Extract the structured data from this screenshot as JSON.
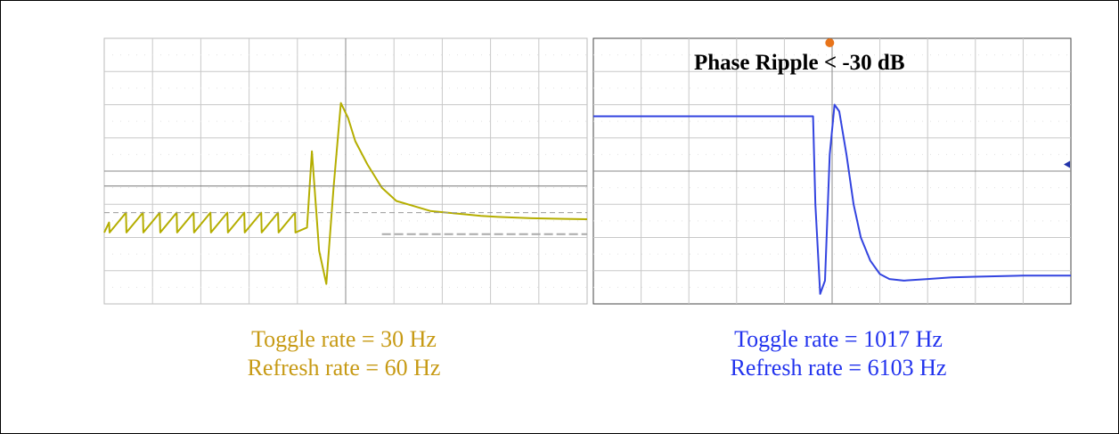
{
  "colors": {
    "left_trace": "#b5ae00",
    "left_text": "#c79a14",
    "right_trace": "#3344e0",
    "right_text": "#2233ee",
    "grid": "#c8c8c8"
  },
  "chart_data": [
    {
      "type": "line",
      "title": "",
      "xlabel": "",
      "ylabel": "",
      "grid": true,
      "captions": [
        "Toggle rate = 30 Hz",
        "Refresh rate = 60 Hz"
      ],
      "x_range": [
        0,
        10
      ],
      "y_range": [
        0,
        8
      ],
      "series": [
        {
          "x": [
            0,
            0.1,
            0.11,
            0.45,
            0.46,
            0.8,
            0.81,
            1.15,
            1.16,
            1.5,
            1.51,
            1.85,
            1.86,
            2.2,
            2.21,
            2.55,
            2.56,
            2.9,
            2.91,
            3.25,
            3.26,
            3.6,
            3.61,
            3.95,
            3.96,
            4.2,
            4.3,
            4.45,
            4.6,
            4.75,
            4.9,
            5.05,
            5.2,
            5.45,
            5.75,
            6.05,
            6.4,
            6.75,
            7.1,
            7.45,
            7.8,
            8.15,
            8.5,
            8.85,
            9.2,
            9.55,
            10.0
          ],
          "y": [
            2.15,
            2.45,
            2.15,
            2.75,
            2.15,
            2.75,
            2.15,
            2.75,
            2.15,
            2.75,
            2.15,
            2.75,
            2.15,
            2.75,
            2.15,
            2.75,
            2.15,
            2.75,
            2.15,
            2.75,
            2.15,
            2.75,
            2.15,
            2.75,
            2.15,
            2.3,
            4.6,
            1.6,
            0.6,
            3.5,
            6.05,
            5.6,
            4.9,
            4.2,
            3.5,
            3.1,
            2.95,
            2.8,
            2.75,
            2.7,
            2.65,
            2.62,
            2.6,
            2.58,
            2.57,
            2.56,
            2.55
          ]
        }
      ]
    },
    {
      "type": "line",
      "title": "",
      "xlabel": "",
      "ylabel": "",
      "grid": true,
      "annotation": "Phase Ripple < -30 dB",
      "captions": [
        "Toggle rate = 1017 Hz",
        "Refresh rate = 6103 Hz"
      ],
      "x_range": [
        0,
        10
      ],
      "y_range": [
        0,
        8
      ],
      "series": [
        {
          "x": [
            0,
            4.6,
            4.65,
            4.75,
            4.85,
            4.95,
            5.05,
            5.15,
            5.3,
            5.45,
            5.6,
            5.8,
            6.0,
            6.2,
            6.5,
            7.0,
            7.5,
            8.0,
            9.0,
            10.0
          ],
          "y": [
            5.65,
            5.65,
            3.0,
            0.3,
            0.7,
            4.5,
            6.0,
            5.8,
            4.5,
            3.0,
            2.0,
            1.3,
            0.9,
            0.75,
            0.7,
            0.75,
            0.8,
            0.82,
            0.85,
            0.85
          ]
        }
      ]
    }
  ]
}
